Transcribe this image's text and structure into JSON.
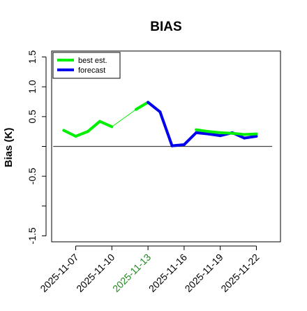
{
  "chart_data": {
    "type": "line",
    "title": "BIAS",
    "ylabel": "Bias (K)",
    "xlabel": "",
    "ylim": [
      -1.6,
      1.6
    ],
    "y_ticks": [
      -1.5,
      -0.5,
      0.5,
      1.0,
      1.5
    ],
    "x_ticks": [
      "2025-11-07",
      "2025-11-10",
      "2025-11-13",
      "2025-11-16",
      "2025-11-19",
      "2025-11-22"
    ],
    "x_tick_colors": [
      "#000000",
      "#000000",
      "#1f8a1f",
      "#000000",
      "#000000",
      "#000000"
    ],
    "x_start": "2025-11-05",
    "x_end": "2025-11-24",
    "zero_line": 0,
    "grid": false,
    "legend_position": "top-left",
    "series": [
      {
        "name": "best est.",
        "color": "#00ee00",
        "points": [
          [
            "2025-11-06",
            0.27
          ],
          [
            "2025-11-07",
            0.17
          ],
          [
            "2025-11-08",
            0.25
          ],
          [
            "2025-11-09",
            0.42
          ],
          [
            "2025-11-10",
            0.33
          ],
          [
            "2025-11-12",
            0.62
          ],
          [
            "2025-11-13",
            0.74
          ]
        ],
        "thin_segments": [
          [
            4,
            5
          ]
        ]
      },
      {
        "name": "forecast",
        "color": "#0000ee",
        "points": [
          [
            "2025-11-13",
            0.74
          ],
          [
            "2025-11-14",
            0.58
          ],
          [
            "2025-11-15",
            0.01
          ],
          [
            "2025-11-16",
            0.03
          ],
          [
            "2025-11-17",
            0.23
          ],
          [
            "2025-11-18",
            0.21
          ],
          [
            "2025-11-19",
            0.18
          ],
          [
            "2025-11-20",
            0.23
          ],
          [
            "2025-11-21",
            0.14
          ],
          [
            "2025-11-22",
            0.17
          ]
        ]
      },
      {
        "name": "",
        "color": "#00ee00",
        "points": [
          [
            "2025-11-17",
            0.28
          ],
          [
            "2025-11-18",
            0.25
          ],
          [
            "2025-11-19",
            0.23
          ],
          [
            "2025-11-20",
            0.22
          ],
          [
            "2025-11-21",
            0.2
          ],
          [
            "2025-11-22",
            0.21
          ]
        ]
      }
    ]
  }
}
